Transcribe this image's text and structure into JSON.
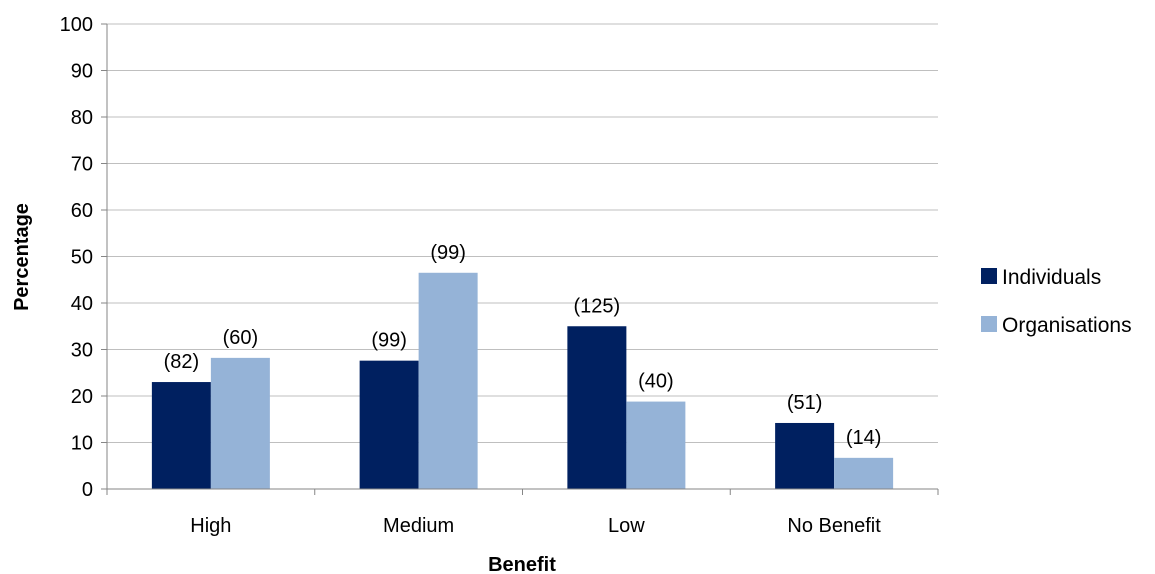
{
  "chart_data": {
    "type": "bar",
    "categories": [
      "High",
      "Medium",
      "Low",
      "No Benefit"
    ],
    "series": [
      {
        "name": "Individuals",
        "color": "#002060",
        "values": [
          23,
          27.6,
          35,
          14.2
        ],
        "labels": [
          "(82)",
          "(99)",
          "(125)",
          "(51)"
        ]
      },
      {
        "name": "Organisations",
        "color": "#95B3D7",
        "values": [
          28.2,
          46.5,
          18.8,
          6.7
        ],
        "labels": [
          "(60)",
          "(99)",
          "(40)",
          "(14)"
        ]
      }
    ],
    "xlabel": "Benefit",
    "ylabel": "Percentage",
    "ylim": [
      0,
      100
    ],
    "yticks": [
      "0",
      "10",
      "20",
      "30",
      "40",
      "50",
      "60",
      "70",
      "80",
      "90",
      "100"
    ],
    "grid": true,
    "legend_position": "right"
  }
}
